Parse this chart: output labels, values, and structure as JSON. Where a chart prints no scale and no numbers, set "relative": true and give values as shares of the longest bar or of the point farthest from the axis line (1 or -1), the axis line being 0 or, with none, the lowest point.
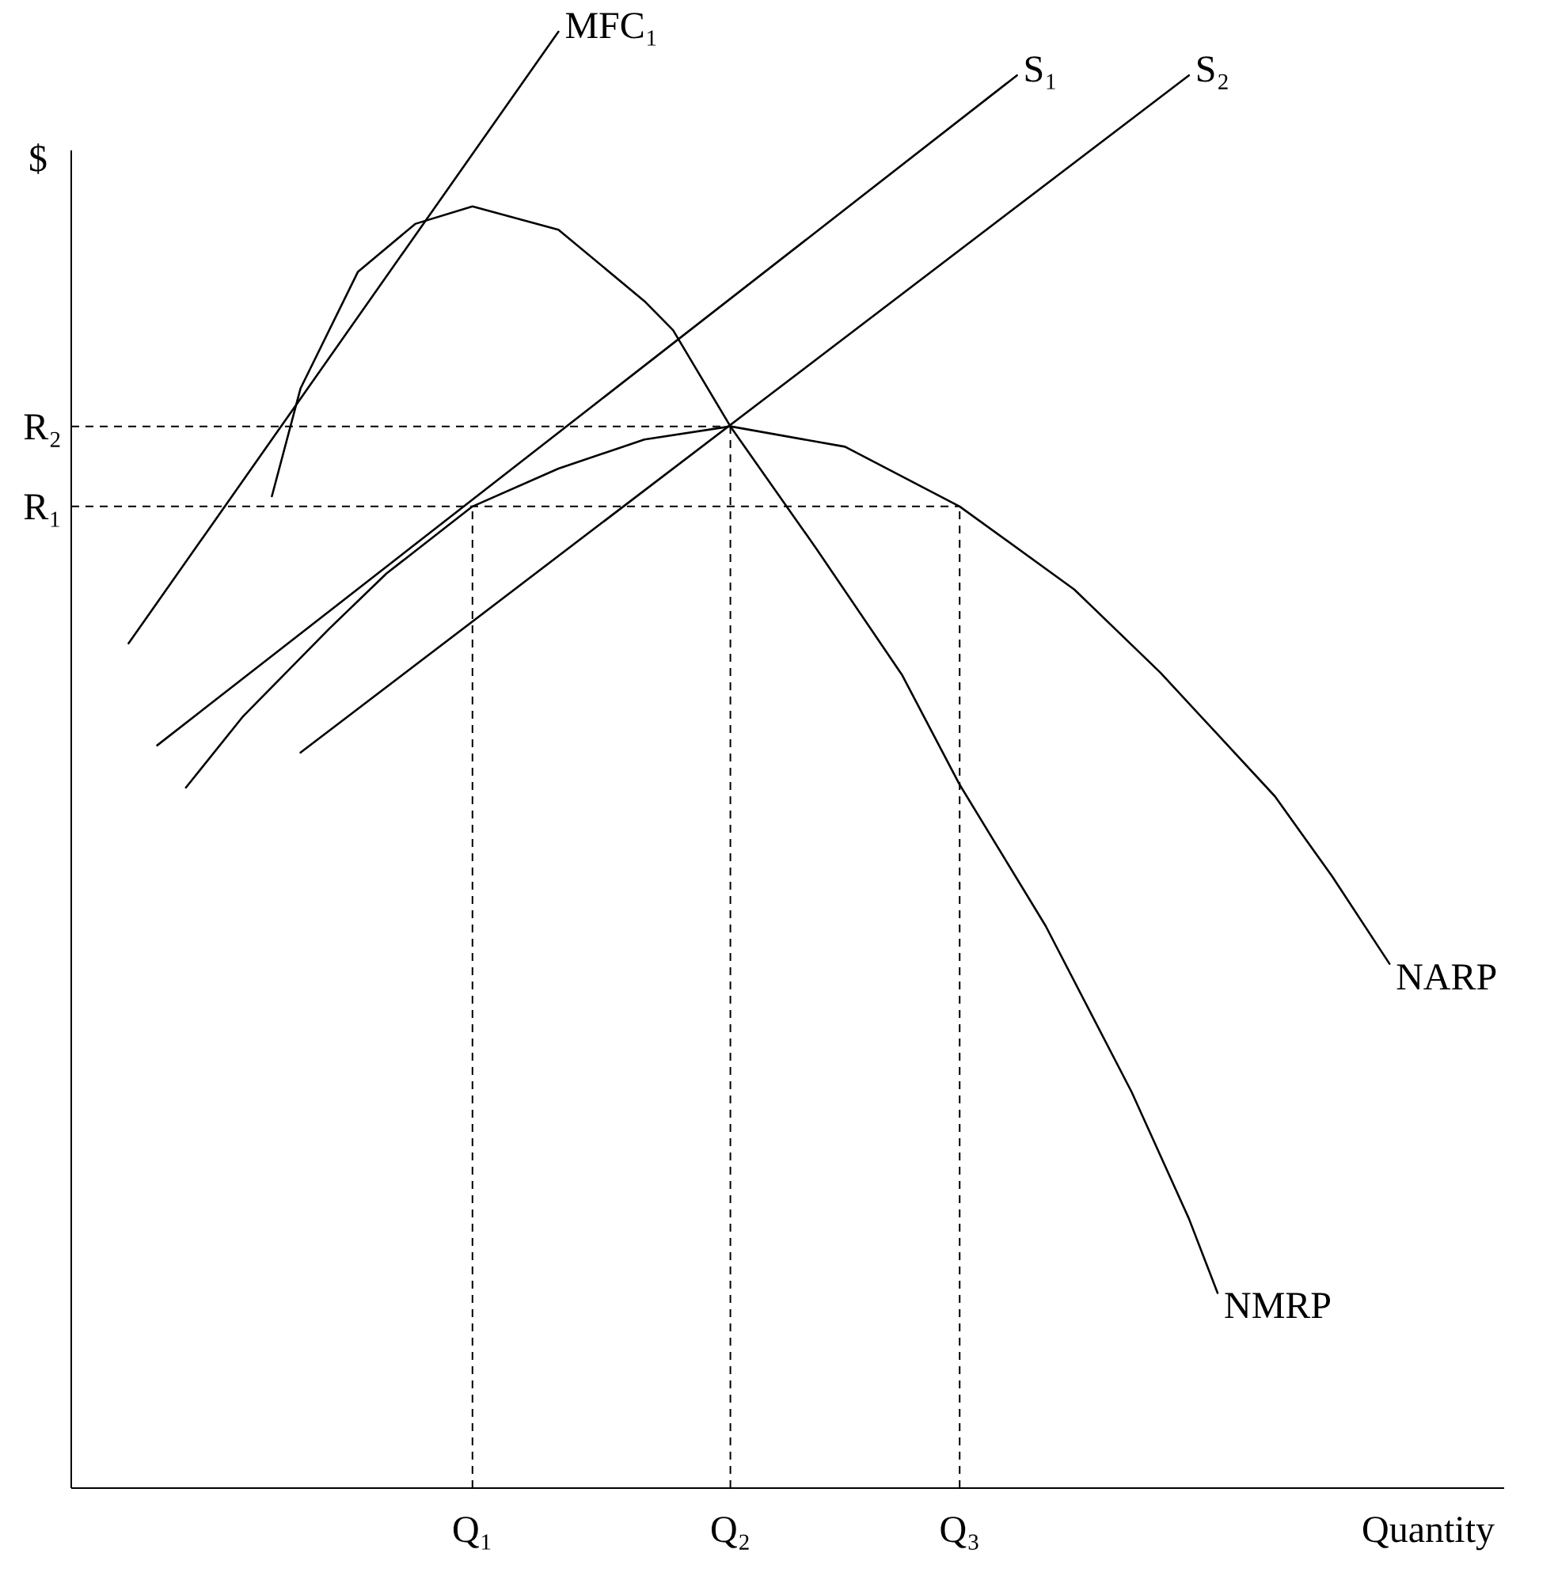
{
  "chart_data": {
    "type": "line",
    "relative": true,
    "xlabel": "Quantity",
    "ylabel": "$",
    "legend": false,
    "grid": false,
    "marker": "none",
    "line_style": "solid",
    "categories": [
      null,
      null,
      null,
      null,
      null,
      null,
      null,
      null,
      null,
      null,
      null,
      null,
      null,
      null,
      "Q₁",
      null,
      null,
      null,
      null,
      null,
      null,
      null,
      null,
      "Q₂",
      null,
      null,
      null,
      null,
      null,
      null,
      null,
      "Q₃",
      null,
      null,
      null,
      null,
      null,
      null,
      null,
      null,
      null,
      null,
      null,
      null,
      null,
      null,
      null,
      null,
      null,
      null,
      null
    ],
    "ref_lines": [
      {
        "axis": "y",
        "value": 0.674,
        "label": "R₁",
        "line_style": "dashed",
        "color": "#000000"
      },
      {
        "axis": "y",
        "value": 0.729,
        "label": "R₂",
        "line_style": "dashed",
        "color": "#000000"
      },
      {
        "axis": "x",
        "value": "Q₁",
        "line_style": "dashed",
        "color": "#000000"
      },
      {
        "axis": "x",
        "value": "Q₂",
        "line_style": "dashed",
        "color": "#000000"
      },
      {
        "axis": "x",
        "value": "Q₃",
        "line_style": "dashed",
        "color": "#000000"
      }
    ],
    "series": [
      {
        "name": "MFC₁",
        "color": "#000000",
        "values": [
          null,
          null,
          0.58,
          null,
          null,
          null,
          null,
          null,
          null,
          null,
          null,
          null,
          null,
          null,
          null,
          null,
          null,
          1,
          null,
          null,
          null,
          null,
          null,
          null,
          null,
          null,
          null,
          null,
          null,
          null,
          null,
          null,
          null,
          null,
          null,
          null,
          null,
          null,
          null,
          null,
          null,
          null,
          null,
          null,
          null,
          null,
          null,
          null,
          null,
          null,
          null
        ]
      },
      {
        "name": "S₁",
        "color": "#000000",
        "values": [
          null,
          null,
          null,
          0.51,
          null,
          null,
          null,
          null,
          null,
          null,
          null,
          null,
          null,
          null,
          null,
          null,
          null,
          null,
          null,
          null,
          null,
          null,
          null,
          null,
          null,
          null,
          null,
          null,
          null,
          null,
          null,
          null,
          null,
          0.97,
          null,
          null,
          null,
          null,
          null,
          null,
          null,
          null,
          null,
          null,
          null,
          null,
          null,
          null,
          null,
          null,
          null
        ]
      },
      {
        "name": "S₂",
        "color": "#000000",
        "values": [
          null,
          null,
          null,
          null,
          null,
          null,
          null,
          null,
          0.505,
          null,
          null,
          null,
          null,
          null,
          null,
          null,
          null,
          null,
          null,
          null,
          null,
          null,
          null,
          null,
          null,
          null,
          null,
          null,
          null,
          null,
          null,
          null,
          null,
          null,
          null,
          null,
          null,
          null,
          null,
          0.97,
          null,
          null,
          null,
          null,
          null,
          null,
          null,
          null,
          null,
          null,
          null
        ]
      },
      {
        "name": "NARP",
        "color": "#000000",
        "values": [
          null,
          null,
          null,
          null,
          0.481,
          null,
          0.53,
          null,
          null,
          0.59,
          null,
          0.628,
          null,
          null,
          0.674,
          null,
          null,
          0.7,
          null,
          null,
          0.72,
          null,
          null,
          0.729,
          null,
          null,
          null,
          0.715,
          null,
          null,
          null,
          0.674,
          null,
          null,
          null,
          0.617,
          null,
          null,
          0.56,
          null,
          null,
          null,
          0.475,
          null,
          0.42,
          null,
          0.36,
          null,
          null,
          null,
          null
        ]
      },
      {
        "name": "NMRP",
        "color": "#000000",
        "values": [
          null,
          null,
          null,
          null,
          null,
          null,
          null,
          0.681,
          0.755,
          null,
          0.835,
          null,
          0.868,
          null,
          0.88,
          null,
          null,
          0.864,
          null,
          null,
          0.815,
          0.795,
          null,
          0.729,
          null,
          null,
          0.645,
          null,
          null,
          0.558,
          null,
          0.483,
          null,
          null,
          0.386,
          null,
          null,
          0.272,
          null,
          0.185,
          0.134,
          null,
          null,
          null,
          null,
          null,
          null,
          null,
          null,
          null,
          null
        ]
      }
    ]
  }
}
